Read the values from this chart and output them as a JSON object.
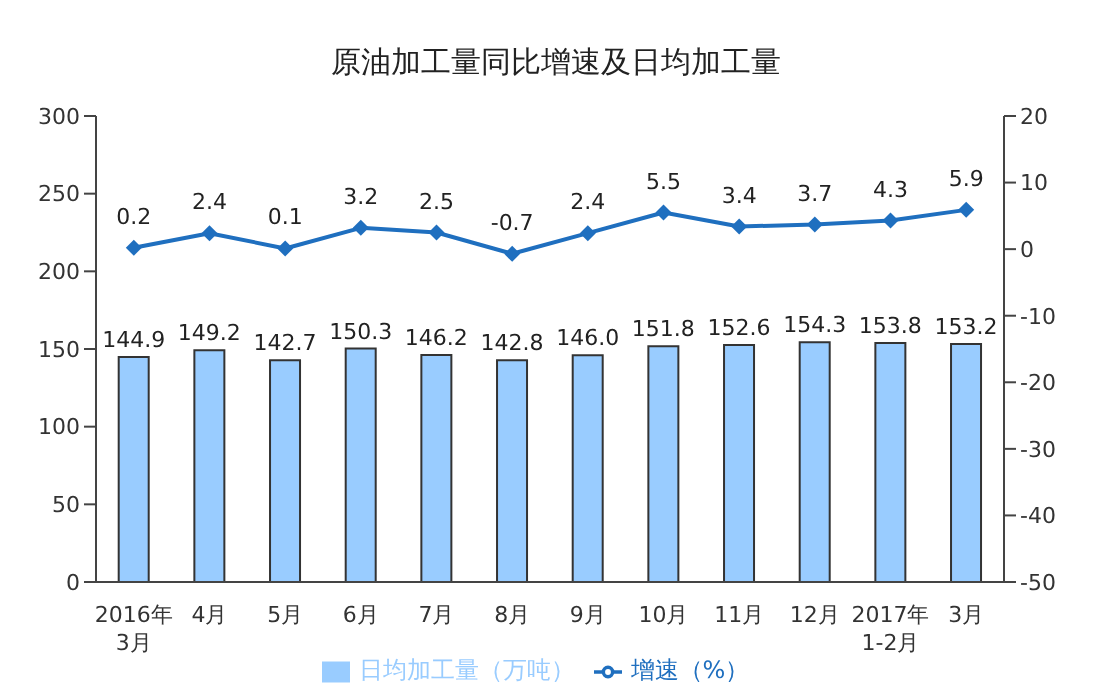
{
  "chart_data": {
    "type": "bar",
    "title": "原油加工量同比增速及日均加工量",
    "categories": [
      "2016年\n3月",
      "4月",
      "5月",
      "6月",
      "7月",
      "8月",
      "9月",
      "10月",
      "11月",
      "12月",
      "2017年\n1-2月",
      "3月"
    ],
    "series": [
      {
        "name": "日均加工量（万吨）",
        "color": "#99ccff",
        "values": [
          144.9,
          149.2,
          142.7,
          150.3,
          146.2,
          142.8,
          146.0,
          151.8,
          152.6,
          154.3,
          153.8,
          153.2
        ],
        "value_labels": [
          "144.9",
          "149.2",
          "142.7",
          "150.3",
          "146.2",
          "142.8",
          "146.0",
          "151.8",
          "152.6",
          "154.3",
          "153.8",
          "153.2"
        ]
      },
      {
        "name": "增速（%）",
        "type": "line",
        "axis": "y2",
        "color": "#1f6fbf",
        "marker": "diamond",
        "values": [
          0.2,
          2.4,
          0.1,
          3.2,
          2.5,
          -0.7,
          2.4,
          5.5,
          3.4,
          3.7,
          4.3,
          5.9
        ]
      }
    ],
    "ylim": [
      0,
      300
    ],
    "yticks": [
      0,
      50,
      100,
      150,
      200,
      250,
      300
    ],
    "y2lim": [
      -50,
      20
    ],
    "y2ticks": [
      -50,
      -40,
      -30,
      -20,
      -10,
      0,
      10,
      20
    ],
    "data_labels": true,
    "legend": "bottom"
  }
}
